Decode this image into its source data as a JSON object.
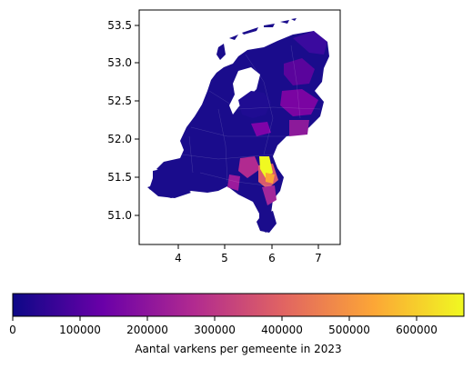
{
  "map": {
    "axes": {
      "x_ticks": [
        "4",
        "5",
        "6",
        "7"
      ],
      "y_ticks": [
        "51.0",
        "51.5",
        "52.0",
        "52.5",
        "53.0",
        "53.5"
      ],
      "x_range": [
        3.2,
        7.4
      ],
      "y_range": [
        50.65,
        53.65
      ]
    },
    "colorbar": {
      "label": "Aantal varkens per gemeente in 2023",
      "ticks": [
        "0",
        "100000",
        "200000",
        "300000",
        "400000",
        "500000",
        "600000"
      ],
      "range": [
        0,
        670000
      ],
      "colormap": "plasma",
      "stops": [
        "#0d0887",
        "#6a00a8",
        "#b12a90",
        "#e16462",
        "#fca636",
        "#f0f921"
      ]
    },
    "colors": {
      "background": "#ffffff",
      "low": "#1a0c8c",
      "mid": "#8c1f9d",
      "high": "#f0f921"
    }
  }
}
